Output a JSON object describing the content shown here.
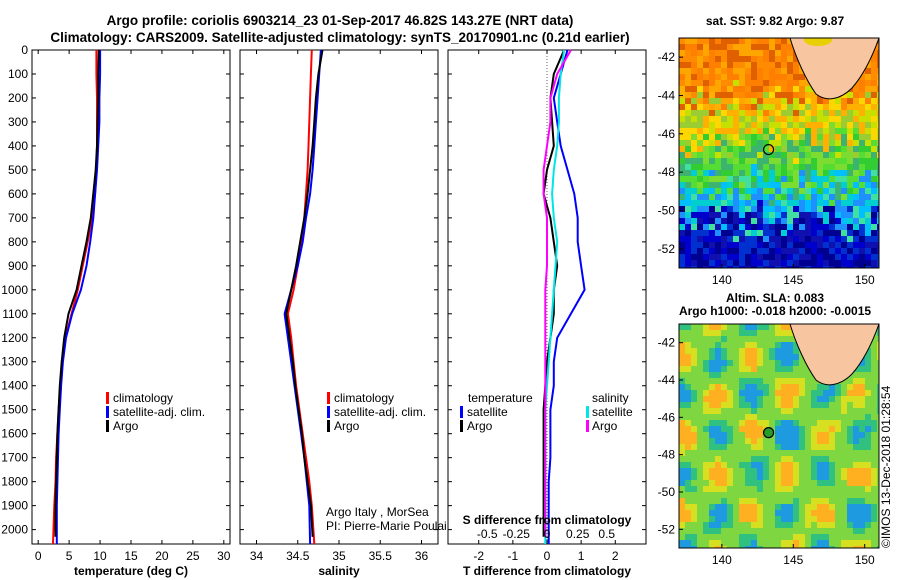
{
  "header": {
    "title_line1": "Argo profile: coriolis 6903214_23 01-Sep-2017 46.82S 143.27E (NRT data)",
    "title_line2": "Climatology: CARS2009. Satellite-adjusted climatology: synTS_20170901.nc (0.21d earlier)"
  },
  "colors": {
    "climatology": "#ff0000",
    "satellite": "#0000ff",
    "argo": "#000000",
    "sal_satellite": "#00e5e5",
    "sal_argo": "#ff00ff"
  },
  "chart_data": [
    {
      "type": "line",
      "xlabel": "temperature (deg C)",
      "xlim": [
        -1,
        31
      ],
      "xticks": [
        "0",
        "5",
        "10",
        "15",
        "20",
        "25",
        "30"
      ],
      "xtick_values": [
        0,
        5,
        10,
        15,
        20,
        25,
        30
      ],
      "ylim": [
        2060,
        0
      ],
      "yticks": [
        "0",
        "100",
        "200",
        "300",
        "400",
        "500",
        "600",
        "700",
        "800",
        "900",
        "1000",
        "1100",
        "1200",
        "1300",
        "1400",
        "1500",
        "1600",
        "1700",
        "1800",
        "1900",
        "2000"
      ],
      "ytick_values": [
        0,
        100,
        200,
        300,
        400,
        500,
        600,
        700,
        800,
        900,
        1000,
        1100,
        1200,
        1300,
        1400,
        1500,
        1600,
        1700,
        1800,
        1900,
        2000
      ],
      "legend": [
        "climatology",
        "satellite-adj. clim.",
        "Argo"
      ],
      "series": [
        {
          "name": "climatology",
          "color": "#ff0000",
          "x": [
            9.4,
            9.4,
            9.5,
            9.5,
            9.5,
            9.4,
            9.2,
            8.7,
            8.0,
            7.2,
            6.4,
            5.4,
            4.4,
            3.9,
            3.6,
            3.3,
            3.1,
            2.9,
            2.8,
            2.6,
            2.4
          ],
          "y": [
            0,
            100,
            200,
            300,
            400,
            500,
            600,
            700,
            800,
            900,
            1000,
            1100,
            1200,
            1300,
            1400,
            1500,
            1600,
            1700,
            1800,
            1900,
            2060
          ]
        },
        {
          "name": "satellite-adj. clim.",
          "color": "#0000ff",
          "x": [
            10.0,
            10.0,
            9.9,
            9.9,
            9.7,
            9.5,
            9.2,
            8.9,
            8.4,
            7.8,
            6.9,
            5.5,
            4.5,
            4.0,
            3.7,
            3.5,
            3.3,
            3.2,
            3.1,
            3.0,
            3.0
          ],
          "y": [
            0,
            100,
            200,
            300,
            400,
            500,
            600,
            700,
            800,
            900,
            1000,
            1100,
            1200,
            1300,
            1400,
            1500,
            1600,
            1700,
            1800,
            1900,
            2060
          ]
        },
        {
          "name": "Argo",
          "color": "#000000",
          "x": [
            9.8,
            9.7,
            9.7,
            9.6,
            9.5,
            9.3,
            8.9,
            8.5,
            7.8,
            7.0,
            6.2,
            4.9,
            4.2,
            3.8,
            3.5,
            3.3,
            3.1,
            3.0,
            2.9,
            2.8,
            2.8
          ],
          "y": [
            0,
            100,
            200,
            300,
            400,
            500,
            600,
            700,
            800,
            900,
            1000,
            1100,
            1200,
            1300,
            1400,
            1500,
            1600,
            1700,
            1800,
            1900,
            2030
          ]
        }
      ]
    },
    {
      "type": "line",
      "xlabel": "salinity",
      "xlim": [
        33.8,
        36.2
      ],
      "xticks": [
        "34",
        "34.5",
        "35",
        "35.5",
        "36"
      ],
      "xtick_values": [
        34,
        34.5,
        35,
        35.5,
        36
      ],
      "ylim": [
        2060,
        0
      ],
      "legend": [
        "climatology",
        "satellite-adj. clim.",
        "Argo"
      ],
      "annotations": [
        "Argo Italy , MorSea",
        "PI: Pierre-Marie Poulain"
      ],
      "series": [
        {
          "name": "climatology",
          "color": "#ff0000",
          "x": [
            34.67,
            34.66,
            34.65,
            34.64,
            34.63,
            34.62,
            34.6,
            34.58,
            34.55,
            34.5,
            34.45,
            34.38,
            34.42,
            34.45,
            34.48,
            34.52,
            34.56,
            34.6,
            34.64,
            34.67,
            34.7
          ],
          "y": [
            0,
            100,
            200,
            300,
            400,
            500,
            600,
            700,
            800,
            900,
            1000,
            1100,
            1200,
            1300,
            1400,
            1500,
            1600,
            1700,
            1800,
            1900,
            2060
          ]
        },
        {
          "name": "satellite-adj. clim.",
          "color": "#0000ff",
          "x": [
            34.78,
            34.76,
            34.74,
            34.72,
            34.7,
            34.68,
            34.65,
            34.6,
            34.56,
            34.5,
            34.42,
            34.34,
            34.38,
            34.42,
            34.46,
            34.5,
            34.54,
            34.58,
            34.61,
            34.64,
            34.65
          ],
          "y": [
            0,
            100,
            200,
            300,
            400,
            500,
            600,
            700,
            800,
            900,
            1000,
            1100,
            1200,
            1300,
            1400,
            1500,
            1600,
            1700,
            1800,
            1900,
            2060
          ]
        },
        {
          "name": "Argo",
          "color": "#000000",
          "x": [
            34.8,
            34.75,
            34.72,
            34.7,
            34.68,
            34.65,
            34.62,
            34.58,
            34.53,
            34.48,
            34.42,
            34.36,
            34.4,
            34.44,
            34.47,
            34.51,
            34.55,
            34.58,
            34.62,
            34.66,
            34.68
          ],
          "y": [
            0,
            100,
            200,
            300,
            400,
            500,
            600,
            700,
            800,
            900,
            1000,
            1100,
            1200,
            1300,
            1400,
            1500,
            1600,
            1700,
            1800,
            1900,
            2030
          ]
        }
      ]
    },
    {
      "type": "line",
      "xlabel": "T difference from climatology",
      "xlabel2": "S difference from climatology",
      "xlim": [
        -2.9,
        2.9
      ],
      "xticks": [
        "-2",
        "-1",
        "0",
        "1",
        "2"
      ],
      "xtick_values": [
        -2,
        -1,
        0,
        1,
        2
      ],
      "xticks2": [
        "-0.5",
        "-0.25",
        "0",
        "0.25",
        "0.5"
      ],
      "ylim": [
        2060,
        0
      ],
      "legend_left_title": "temperature",
      "legend_left": [
        "satellite",
        "Argo"
      ],
      "legend_right_title": "salinity",
      "legend_right": [
        "satellite",
        "Argo"
      ],
      "series": [
        {
          "name": "temperature satellite",
          "color": "#0000ff",
          "x": [
            0.6,
            0.4,
            0.2,
            0.3,
            0.4,
            0.6,
            0.8,
            0.9,
            0.9,
            1.0,
            1.1,
            0.7,
            0.3,
            0.2,
            0.2,
            0.1,
            0.1,
            0.1,
            0.05,
            0.05,
            0.05
          ],
          "y": [
            0,
            100,
            200,
            300,
            400,
            500,
            600,
            700,
            800,
            900,
            1000,
            1100,
            1200,
            1300,
            1400,
            1500,
            1600,
            1700,
            1800,
            1900,
            2060
          ]
        },
        {
          "name": "temperature Argo",
          "color": "#000000",
          "x": [
            0.5,
            0.2,
            0.1,
            0.15,
            0.2,
            0.0,
            -0.1,
            0.1,
            0.2,
            0.3,
            0.2,
            0.2,
            0.1,
            0.0,
            -0.05,
            -0.1,
            -0.1,
            -0.1,
            -0.1,
            -0.1,
            -0.1
          ],
          "y": [
            0,
            100,
            200,
            300,
            400,
            500,
            600,
            700,
            800,
            900,
            1000,
            1100,
            1200,
            1300,
            1400,
            1500,
            1600,
            1700,
            1800,
            1900,
            2030
          ]
        },
        {
          "name": "salinity satellite",
          "color": "#00e5e5",
          "x": [
            0.5,
            0.4,
            0.35,
            0.35,
            0.3,
            0.2,
            0.15,
            0.2,
            0.3,
            0.25,
            0.2,
            0.15,
            0.1,
            0.05,
            0.0,
            -0.05,
            -0.05,
            -0.05,
            -0.05,
            -0.05,
            -0.05
          ],
          "y": [
            0,
            100,
            200,
            300,
            400,
            500,
            600,
            700,
            800,
            900,
            1000,
            1100,
            1200,
            1300,
            1400,
            1500,
            1600,
            1700,
            1800,
            1900,
            2060
          ]
        },
        {
          "name": "salinity Argo",
          "color": "#ff00ff",
          "x": [
            0.7,
            0.3,
            0.1,
            0.1,
            0.0,
            -0.1,
            -0.1,
            0.0,
            0.0,
            0.0,
            -0.05,
            -0.05,
            -0.05,
            -0.05,
            -0.05,
            -0.05,
            -0.05,
            -0.05,
            -0.05,
            -0.05,
            -0.05
          ],
          "y": [
            0,
            100,
            200,
            300,
            400,
            500,
            600,
            700,
            800,
            900,
            1000,
            1100,
            1200,
            1300,
            1400,
            1500,
            1600,
            1700,
            1800,
            1900,
            2030
          ]
        }
      ]
    },
    {
      "type": "heatmap",
      "title": "sat. SST: 9.82 Argo: 9.87",
      "xticks": [
        "140",
        "145",
        "150"
      ],
      "xtick_values": [
        140,
        145,
        150
      ],
      "yticks": [
        "-42",
        "-44",
        "-46",
        "-48",
        "-50",
        "-52"
      ],
      "ytick_values": [
        -42,
        -44,
        -46,
        -48,
        -50,
        -52
      ],
      "xlim": [
        137,
        151
      ],
      "ylim": [
        -53,
        -41
      ],
      "marker": {
        "lon": 143.27,
        "lat": -46.82
      }
    },
    {
      "type": "heatmap",
      "title": "Altim. SLA: 0.083",
      "subtitle": "Argo h1000: -0.018 h2000: -0.0015",
      "xticks": [
        "140",
        "145",
        "150"
      ],
      "xtick_values": [
        140,
        145,
        150
      ],
      "yticks": [
        "-42",
        "-44",
        "-46",
        "-48",
        "-50",
        "-52"
      ],
      "ytick_values": [
        -42,
        -44,
        -46,
        -48,
        -50,
        -52
      ],
      "xlim": [
        137,
        151
      ],
      "ylim": [
        -53,
        -41
      ],
      "marker": {
        "lon": 143.27,
        "lat": -46.82
      }
    }
  ],
  "watermark": "©IMOS 13-Dec-2018 01:28:54"
}
